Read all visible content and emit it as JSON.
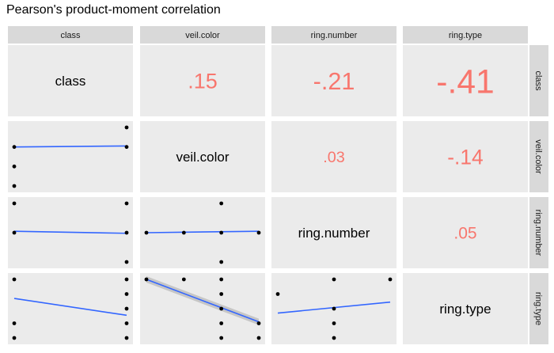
{
  "title": "Pearson's product-moment correlation",
  "chart_data": {
    "type": "scatter-matrix",
    "title": "Pearson's product-moment correlation",
    "variables": [
      "class",
      "veil.color",
      "ring.number",
      "ring.type"
    ],
    "correlations": [
      {
        "row": 0,
        "col": 1,
        "label": ".15",
        "value": 0.15
      },
      {
        "row": 0,
        "col": 2,
        "label": "-.21",
        "value": -0.21
      },
      {
        "row": 0,
        "col": 3,
        "label": "-.41",
        "value": -0.41
      },
      {
        "row": 1,
        "col": 2,
        "label": ".03",
        "value": 0.03
      },
      {
        "row": 1,
        "col": 3,
        "label": "-.14",
        "value": -0.14
      },
      {
        "row": 2,
        "col": 3,
        "label": ".05",
        "value": 0.05
      }
    ],
    "scatter_panels": [
      {
        "row": 1,
        "col": 0,
        "xlim": [
          0,
          1
        ],
        "ylim": [
          0,
          3
        ],
        "points": [
          [
            1,
            3
          ],
          [
            0,
            2
          ],
          [
            1,
            2
          ],
          [
            0,
            1
          ],
          [
            0,
            0
          ]
        ],
        "fit": [
          [
            0,
            2.0
          ],
          [
            1,
            2.05
          ]
        ],
        "se_band": false
      },
      {
        "row": 2,
        "col": 0,
        "xlim": [
          0,
          1
        ],
        "ylim": [
          0,
          2
        ],
        "points": [
          [
            0,
            2
          ],
          [
            1,
            2
          ],
          [
            0,
            1
          ],
          [
            1,
            1
          ],
          [
            1,
            0
          ]
        ],
        "fit": [
          [
            0,
            1.05
          ],
          [
            1,
            0.98
          ]
        ],
        "se_band": false
      },
      {
        "row": 2,
        "col": 1,
        "xlim": [
          0,
          3
        ],
        "ylim": [
          0,
          2
        ],
        "points": [
          [
            2,
            2
          ],
          [
            0,
            1
          ],
          [
            1,
            1
          ],
          [
            2,
            1
          ],
          [
            3,
            1
          ],
          [
            2,
            0
          ]
        ],
        "fit": [
          [
            0,
            1.0
          ],
          [
            3,
            1.05
          ]
        ],
        "se_band": false
      },
      {
        "row": 3,
        "col": 0,
        "xlim": [
          0,
          1
        ],
        "ylim": [
          0,
          4
        ],
        "points": [
          [
            0,
            4
          ],
          [
            1,
            4
          ],
          [
            1,
            3
          ],
          [
            1,
            2
          ],
          [
            0,
            1
          ],
          [
            1,
            1
          ],
          [
            0,
            0
          ],
          [
            1,
            0
          ]
        ],
        "fit": [
          [
            0,
            2.7
          ],
          [
            1,
            1.55
          ]
        ],
        "se_band": false
      },
      {
        "row": 3,
        "col": 1,
        "xlim": [
          0,
          3
        ],
        "ylim": [
          0,
          4
        ],
        "points": [
          [
            0,
            4
          ],
          [
            1,
            4
          ],
          [
            2,
            4
          ],
          [
            2,
            3
          ],
          [
            2,
            2
          ],
          [
            2,
            1
          ],
          [
            3,
            1
          ],
          [
            2,
            0
          ],
          [
            3,
            0
          ]
        ],
        "fit": [
          [
            0,
            4.0
          ],
          [
            3,
            1.1
          ]
        ],
        "se_band": true
      },
      {
        "row": 3,
        "col": 2,
        "xlim": [
          0,
          2
        ],
        "ylim": [
          0,
          4
        ],
        "points": [
          [
            1,
            4
          ],
          [
            2,
            4
          ],
          [
            0,
            3
          ],
          [
            1,
            2
          ],
          [
            1,
            1
          ],
          [
            1,
            0
          ]
        ],
        "fit": [
          [
            0,
            1.7
          ],
          [
            2,
            2.45
          ]
        ],
        "se_band": false
      }
    ],
    "colors": {
      "fit_line": "#3366FF",
      "correlation_text": "#F8766D",
      "panel_bg": "#EBEBEB",
      "strip_bg": "#D9D9D9",
      "point": "#000000",
      "se_band": "#999999"
    }
  }
}
